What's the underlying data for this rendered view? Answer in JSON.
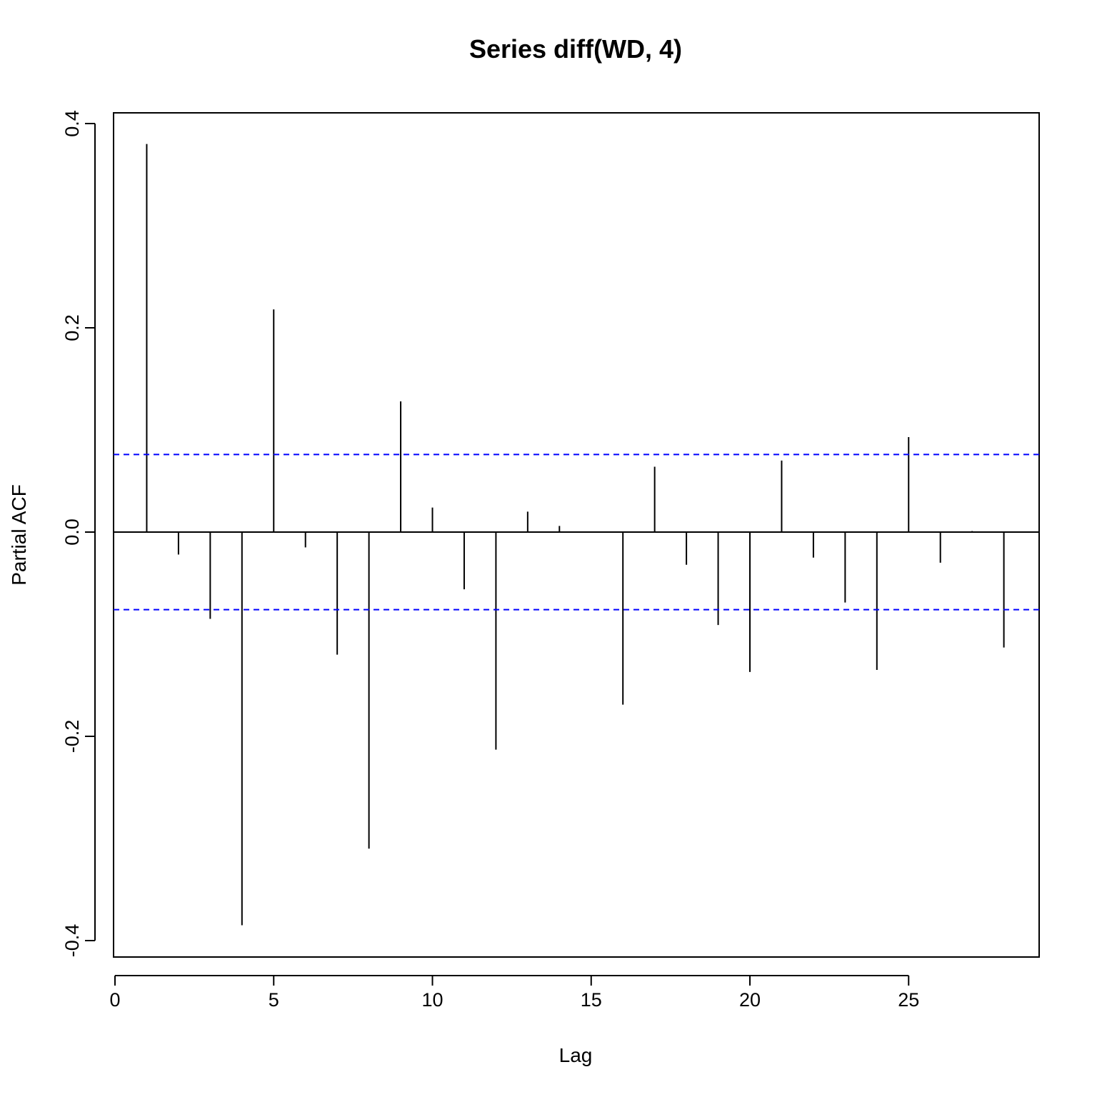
{
  "chart_data": {
    "type": "bar",
    "title": "Series  diff(WD, 4)",
    "xlabel": "Lag",
    "ylabel": "Partial ACF",
    "xlim": [
      0,
      29
    ],
    "ylim": [
      -0.4,
      0.4
    ],
    "x_ticks": [
      "0",
      "5",
      "10",
      "15",
      "20",
      "25"
    ],
    "x_tick_values": [
      0,
      5,
      10,
      15,
      20,
      25
    ],
    "y_ticks": [
      "-0.4",
      "-0.2",
      "0.0",
      "0.2",
      "0.4"
    ],
    "y_tick_values": [
      -0.4,
      -0.2,
      0.0,
      0.2,
      0.4
    ],
    "lags": [
      1,
      2,
      3,
      4,
      5,
      6,
      7,
      8,
      9,
      10,
      11,
      12,
      13,
      14,
      15,
      16,
      17,
      18,
      19,
      20,
      21,
      22,
      23,
      24,
      25,
      26,
      27,
      28
    ],
    "values": [
      0.38,
      -0.022,
      -0.085,
      -0.385,
      0.218,
      -0.015,
      -0.12,
      -0.31,
      0.128,
      0.024,
      -0.056,
      -0.213,
      0.02,
      0.006,
      0.0,
      -0.169,
      0.064,
      -0.032,
      -0.091,
      -0.137,
      0.07,
      -0.025,
      -0.069,
      -0.135,
      0.093,
      -0.03,
      0.001,
      -0.113
    ],
    "confidence_band": 0.076,
    "colors": {
      "bars": "#000000",
      "confidence": "#0000ff",
      "zero_line": "#000000"
    },
    "grid": false
  }
}
